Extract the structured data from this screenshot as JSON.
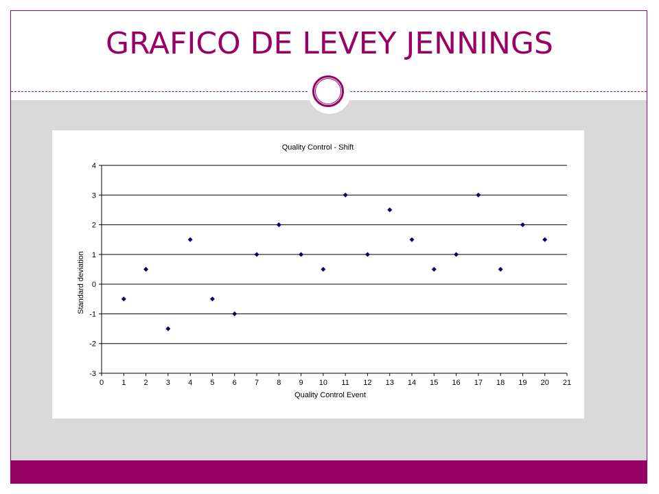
{
  "slide": {
    "title": "GRAFICO DE LEVEY JENNINGS"
  },
  "colors": {
    "accent": "#990066",
    "band": "#d9d9d9",
    "marker": "#000066"
  },
  "chart_data": {
    "type": "scatter",
    "title": "Quality Control - Shift",
    "xlabel": "Quality Control Event",
    "ylabel": "Standard deviation",
    "xlim": [
      0,
      21
    ],
    "ylim": [
      -3,
      4
    ],
    "xticks": [
      0,
      1,
      2,
      3,
      4,
      5,
      6,
      7,
      8,
      9,
      10,
      11,
      12,
      13,
      14,
      15,
      16,
      17,
      18,
      19,
      20,
      21
    ],
    "yticks": [
      -3,
      -2,
      -1,
      0,
      1,
      2,
      3,
      4
    ],
    "grid": "horizontal",
    "x": [
      1,
      2,
      3,
      4,
      5,
      6,
      7,
      8,
      9,
      10,
      11,
      12,
      13,
      14,
      15,
      16,
      17,
      18,
      19,
      20
    ],
    "y": [
      -0.5,
      0.5,
      -1.5,
      1.5,
      -0.5,
      -1,
      1,
      2,
      1,
      0.5,
      3,
      1,
      2.5,
      1.5,
      0.5,
      1,
      3,
      0.5,
      2,
      1.5
    ]
  }
}
